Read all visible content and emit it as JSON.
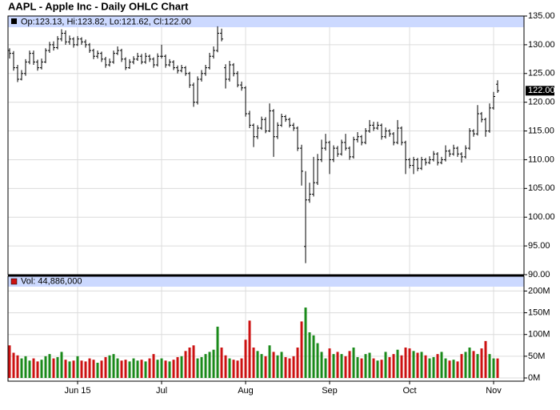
{
  "chart_data": {
    "type": "ohlc",
    "title": "AAPL - Apple Inc - Daily OHLC Chart",
    "price_header": "Op:123.13, Hi:123.82, Lo:121.62, Cl:122.00",
    "volume_header": "Vol: 44,886,000",
    "last_price": {
      "value": 122,
      "label": "122.00"
    },
    "categories": [
      null,
      null,
      null,
      null,
      null,
      null,
      null,
      null,
      null,
      null,
      null,
      null,
      null,
      null,
      null,
      null,
      null,
      "Jun 15",
      null,
      null,
      null,
      null,
      null,
      null,
      null,
      null,
      null,
      null,
      null,
      null,
      null,
      null,
      null,
      null,
      null,
      null,
      null,
      null,
      "Jul",
      null,
      null,
      null,
      null,
      null,
      null,
      null,
      null,
      null,
      null,
      null,
      null,
      null,
      null,
      null,
      null,
      null,
      null,
      null,
      null,
      "Aug",
      null,
      null,
      null,
      null,
      null,
      null,
      null,
      null,
      null,
      null,
      null,
      null,
      null,
      null,
      null,
      null,
      null,
      null,
      null,
      null,
      "Sep",
      null,
      null,
      null,
      null,
      null,
      null,
      null,
      null,
      null,
      null,
      null,
      null,
      null,
      null,
      null,
      null,
      null,
      null,
      null,
      "Oct",
      null,
      null,
      null,
      null,
      null,
      null,
      null,
      null,
      null,
      null,
      null,
      null,
      null,
      null,
      null,
      null,
      null,
      null,
      null,
      null,
      "Nov",
      null
    ],
    "ohlc": [
      [
        129,
        129.4,
        127.6,
        128.5
      ],
      [
        128.5,
        128.9,
        125.5,
        126
      ],
      [
        126,
        126.5,
        123.5,
        124
      ],
      [
        124,
        125.6,
        123.8,
        125
      ],
      [
        125,
        127.5,
        124.6,
        127
      ],
      [
        127,
        129,
        126.6,
        128.5
      ],
      [
        128.5,
        129,
        126.5,
        127
      ],
      [
        127,
        127.4,
        125.5,
        126
      ],
      [
        126,
        127.6,
        125.7,
        127
      ],
      [
        127,
        129.4,
        126.8,
        129
      ],
      [
        129,
        130.5,
        128.6,
        130
      ],
      [
        130,
        130.6,
        129,
        129.5
      ],
      [
        129.5,
        131.5,
        129.2,
        131
      ],
      [
        131,
        132.7,
        130.6,
        132
      ],
      [
        132,
        132.5,
        130,
        130.5
      ],
      [
        130.5,
        131.6,
        130,
        131
      ],
      [
        131,
        131.3,
        129.5,
        130
      ],
      [
        130,
        131.5,
        129.8,
        131
      ],
      [
        131,
        131.3,
        130,
        130.5
      ],
      [
        130.5,
        130.9,
        129.5,
        130
      ],
      [
        130,
        130.3,
        128.6,
        129
      ],
      [
        129,
        129.3,
        127.5,
        128
      ],
      [
        128,
        129,
        127.6,
        128.5
      ],
      [
        128.5,
        128.8,
        127,
        127.5
      ],
      [
        127.5,
        127.9,
        126,
        126.5
      ],
      [
        126.5,
        127.6,
        126.2,
        127
      ],
      [
        127,
        129,
        126.7,
        128.5
      ],
      [
        128.5,
        129.7,
        128.2,
        129
      ],
      [
        129,
        129.3,
        127,
        127.5
      ],
      [
        127.5,
        127.8,
        125.6,
        126
      ],
      [
        126,
        127.5,
        125.8,
        127
      ],
      [
        127,
        128,
        126.6,
        127.5
      ],
      [
        127.5,
        128.6,
        127.2,
        128
      ],
      [
        128,
        128.4,
        126.6,
        127
      ],
      [
        127,
        128.6,
        126.7,
        128
      ],
      [
        128,
        128.3,
        127,
        127.5
      ],
      [
        127.5,
        127.8,
        126,
        126.5
      ],
      [
        126.5,
        128.5,
        126.2,
        128
      ],
      [
        128,
        130,
        127.6,
        128
      ],
      [
        128,
        128.3,
        126,
        126.5
      ],
      [
        126.5,
        127.5,
        126.2,
        127
      ],
      [
        127,
        127.3,
        125.6,
        126
      ],
      [
        126,
        126.4,
        125,
        125.5
      ],
      [
        125.5,
        126.5,
        125.2,
        126
      ],
      [
        126,
        126.3,
        124.6,
        125
      ],
      [
        125,
        125.3,
        122.5,
        123
      ],
      [
        123,
        123.4,
        119.2,
        120
      ],
      [
        120,
        124.5,
        119.6,
        124
      ],
      [
        124,
        125.6,
        123.6,
        125
      ],
      [
        125,
        126.5,
        124.6,
        126
      ],
      [
        126,
        128.6,
        125.7,
        128
      ],
      [
        128,
        129.7,
        127.6,
        129
      ],
      [
        129,
        133.2,
        128.7,
        132
      ],
      [
        132,
        132.8,
        130.6,
        131
      ],
      [
        126,
        126.6,
        122.4,
        124
      ],
      [
        124,
        127.2,
        123.6,
        126.5
      ],
      [
        126.5,
        126.8,
        124.5,
        125
      ],
      [
        125,
        125.4,
        122.6,
        123
      ],
      [
        123,
        123.6,
        122,
        122.5
      ],
      [
        122.5,
        122.8,
        117.5,
        118
      ],
      [
        118,
        118.5,
        115.5,
        116
      ],
      [
        116,
        116.3,
        112.2,
        114
      ],
      [
        114,
        116,
        113.6,
        115.5
      ],
      [
        115.5,
        117.5,
        115.2,
        117
      ],
      [
        117,
        117.4,
        114.6,
        115
      ],
      [
        115,
        119.8,
        114.8,
        118.5
      ],
      [
        118.5,
        118.8,
        110.5,
        114
      ],
      [
        114,
        116.5,
        113.6,
        116
      ],
      [
        116,
        118,
        115.7,
        117.5
      ],
      [
        117.5,
        117.8,
        116.6,
        117
      ],
      [
        117,
        117.3,
        115.6,
        116
      ],
      [
        116,
        116.4,
        115,
        115.5
      ],
      [
        115.5,
        115.8,
        111.5,
        112
      ],
      [
        112,
        112.6,
        105.5,
        108
      ],
      [
        94.9,
        108,
        92,
        103
      ],
      [
        103,
        106,
        102.5,
        104
      ],
      [
        104,
        110.5,
        103.6,
        106
      ],
      [
        106,
        111,
        105.6,
        110
      ],
      [
        110,
        113.5,
        109.6,
        112
      ],
      [
        112,
        114.5,
        111.6,
        113
      ],
      [
        113,
        113.3,
        107.5,
        110
      ],
      [
        110,
        112.5,
        109.6,
        112
      ],
      [
        112,
        112.4,
        110.5,
        111
      ],
      [
        111,
        113.5,
        110.7,
        113
      ],
      [
        113,
        114.5,
        111.6,
        112
      ],
      [
        112,
        112.3,
        110,
        110.5
      ],
      [
        110.5,
        114,
        110.2,
        113.5
      ],
      [
        113.5,
        114.8,
        113,
        114
      ],
      [
        114,
        114.3,
        112.5,
        113
      ],
      [
        113,
        115.5,
        112.7,
        115
      ],
      [
        115,
        116.9,
        114.7,
        116
      ],
      [
        116,
        116.6,
        115,
        115.5
      ],
      [
        115.5,
        116.6,
        115.2,
        116
      ],
      [
        116,
        116.3,
        113.5,
        114
      ],
      [
        114,
        115.6,
        113.7,
        115
      ],
      [
        115,
        115.3,
        114,
        114.5
      ],
      [
        114.5,
        114.8,
        112.5,
        113
      ],
      [
        113,
        116.9,
        112.7,
        115.5
      ],
      [
        115.5,
        115.8,
        112.5,
        113
      ],
      [
        113,
        113.3,
        107.5,
        110
      ],
      [
        110,
        110.3,
        108.5,
        109
      ],
      [
        109,
        110.5,
        107.5,
        110
      ],
      [
        110,
        110.3,
        108,
        108.5
      ],
      [
        108.5,
        110.5,
        108.2,
        110
      ],
      [
        110,
        110.3,
        109,
        109.5
      ],
      [
        109.5,
        110.6,
        109.2,
        110
      ],
      [
        110,
        111.5,
        109.7,
        111
      ],
      [
        111,
        111.3,
        109,
        109.5
      ],
      [
        109.5,
        110.5,
        109.2,
        110
      ],
      [
        110,
        112.5,
        109.7,
        111.5
      ],
      [
        111.5,
        111.8,
        110.5,
        111
      ],
      [
        111,
        112.6,
        110.7,
        112
      ],
      [
        112,
        112.3,
        110.5,
        111
      ],
      [
        111,
        111.3,
        109.5,
        110.5
      ],
      [
        110.5,
        112.5,
        110.2,
        112
      ],
      [
        112,
        115.5,
        111.7,
        115
      ],
      [
        115,
        115.3,
        114,
        114.5
      ],
      [
        114.5,
        119.5,
        114.2,
        118
      ],
      [
        118,
        118.3,
        116.5,
        117
      ],
      [
        117,
        117.3,
        114,
        115
      ],
      [
        115,
        119.8,
        114.7,
        119
      ],
      [
        119,
        121.8,
        118.7,
        121
      ],
      [
        123.13,
        123.82,
        121.62,
        122
      ]
    ],
    "volume": [
      75000000,
      58000000,
      52000000,
      45000000,
      50000000,
      40000000,
      45000000,
      38000000,
      42000000,
      50000000,
      55000000,
      45000000,
      48000000,
      60000000,
      42000000,
      38000000,
      40000000,
      50000000,
      40000000,
      38000000,
      45000000,
      42000000,
      35000000,
      40000000,
      48000000,
      52000000,
      55000000,
      45000000,
      40000000,
      42000000,
      38000000,
      45000000,
      40000000,
      42000000,
      38000000,
      45000000,
      55000000,
      42000000,
      45000000,
      40000000,
      38000000,
      42000000,
      48000000,
      50000000,
      62000000,
      70000000,
      75000000,
      45000000,
      48000000,
      55000000,
      60000000,
      65000000,
      118000000,
      70000000,
      52000000,
      45000000,
      42000000,
      40000000,
      45000000,
      88000000,
      132000000,
      70000000,
      62000000,
      55000000,
      50000000,
      75000000,
      60000000,
      52000000,
      60000000,
      48000000,
      45000000,
      50000000,
      70000000,
      130000000,
      162000000,
      105000000,
      98000000,
      80000000,
      60000000,
      45000000,
      68000000,
      55000000,
      60000000,
      55000000,
      50000000,
      62000000,
      70000000,
      48000000,
      45000000,
      55000000,
      58000000,
      45000000,
      40000000,
      42000000,
      60000000,
      48000000,
      55000000,
      65000000,
      52000000,
      70000000,
      68000000,
      62000000,
      58000000,
      60000000,
      52000000,
      45000000,
      48000000,
      55000000,
      60000000,
      45000000,
      40000000,
      42000000,
      38000000,
      55000000,
      60000000,
      70000000,
      62000000,
      55000000,
      68000000,
      85000000,
      55000000,
      45000000,
      44886000
    ],
    "ylim": [
      90,
      135
    ],
    "yticks": [
      {
        "value": 90,
        "label": "90.00"
      },
      {
        "value": 95,
        "label": "95.00"
      },
      {
        "value": 100,
        "label": "100.00"
      },
      {
        "value": 105,
        "label": "105.00"
      },
      {
        "value": 110,
        "label": "110.00"
      },
      {
        "value": 115,
        "label": "115.00"
      },
      {
        "value": 120,
        "label": "120.00"
      },
      {
        "value": 125,
        "label": "125.00"
      },
      {
        "value": 130,
        "label": "130.00"
      },
      {
        "value": 135,
        "label": "135.00"
      }
    ],
    "y2lim": [
      0,
      210000000
    ],
    "y2ticks": [
      {
        "value": 0,
        "label": "0M"
      },
      {
        "value": 50000000,
        "label": "50M"
      },
      {
        "value": 100000000,
        "label": "100M"
      },
      {
        "value": 150000000,
        "label": "150M"
      },
      {
        "value": 200000000,
        "label": "200M"
      }
    ],
    "bar_color": "#000000",
    "up_color": "#1a8a1a",
    "down_color": "#cc1111",
    "grid": true
  }
}
